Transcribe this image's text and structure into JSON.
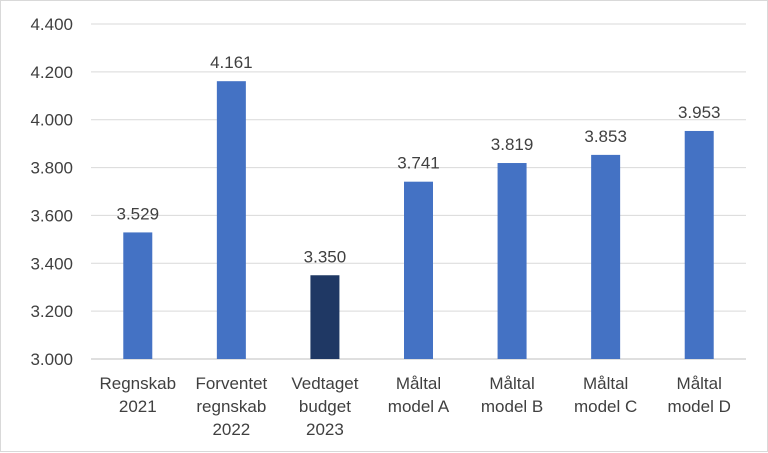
{
  "chart_data": {
    "type": "bar",
    "title": "",
    "xlabel": "",
    "ylabel": "",
    "ylim": [
      3000,
      4400
    ],
    "ystep": 200,
    "yticks": [
      "3.000",
      "3.200",
      "3.400",
      "3.600",
      "3.800",
      "4.000",
      "4.200",
      "4.400"
    ],
    "grid": true,
    "categories": [
      [
        "Regnskab",
        "2021"
      ],
      [
        "Forventet",
        "regnskab",
        "2022"
      ],
      [
        "Vedtaget",
        "budget",
        "2023"
      ],
      [
        "Måltal",
        "model A"
      ],
      [
        "Måltal",
        "model B"
      ],
      [
        "Måltal",
        "model C"
      ],
      [
        "Måltal",
        "model D"
      ]
    ],
    "values": [
      3529,
      4161,
      3350,
      3741,
      3819,
      3853,
      3953
    ],
    "data_labels": [
      "3.529",
      "4.161",
      "3.350",
      "3.741",
      "3.819",
      "3.853",
      "3.953"
    ],
    "colors": [
      "#4472C4",
      "#4472C4",
      "#1F3864",
      "#4472C4",
      "#4472C4",
      "#4472C4",
      "#4472C4"
    ]
  }
}
